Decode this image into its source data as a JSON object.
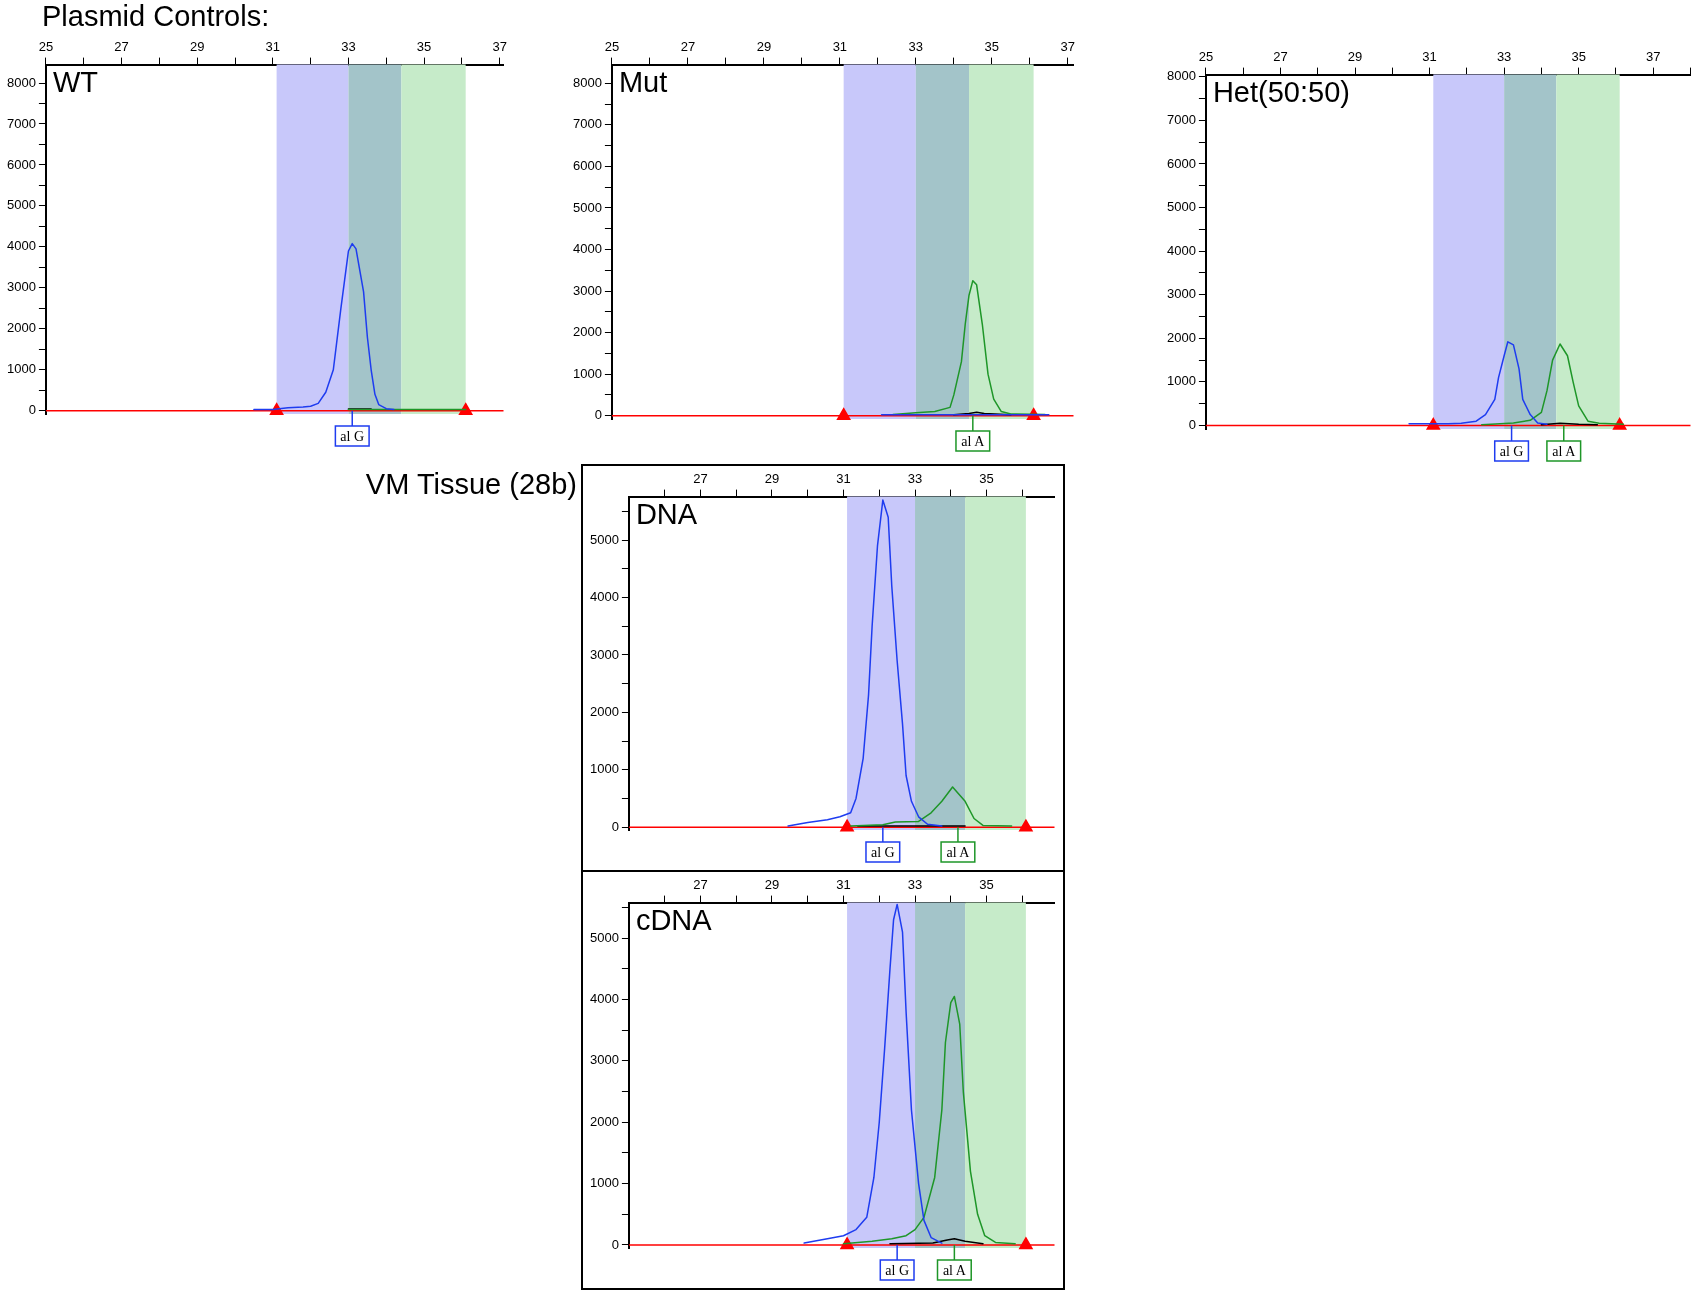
{
  "chart_data": [
    {
      "type": "line",
      "title": "WT",
      "annotations": [
        "Plasmid Controls:",
        {
          "text": "al G",
          "x": 33.1,
          "y": 0
        }
      ],
      "xlim": [
        25,
        37.1
      ],
      "ylim": [
        -80,
        8450
      ],
      "xticks": [
        25,
        {
          "value": 26,
          "label": null
        },
        27,
        {
          "value": 28,
          "label": null
        },
        29,
        {
          "value": 30,
          "label": null
        },
        31,
        {
          "value": 32,
          "label": null
        },
        33,
        {
          "value": 34,
          "label": null
        },
        35,
        {
          "value": 36,
          "label": null
        },
        37
      ],
      "yticks": [
        0,
        {
          "value": 500,
          "label": null
        },
        1000,
        {
          "value": 1500,
          "label": null
        },
        2000,
        {
          "value": 2500,
          "label": null
        },
        3000,
        {
          "value": 3500,
          "label": null
        },
        4000,
        {
          "value": 4500,
          "label": null
        },
        5000,
        {
          "value": 5500,
          "label": null
        },
        6000,
        {
          "value": 6500,
          "label": null
        },
        7000,
        {
          "value": 7500,
          "label": null
        },
        8000
      ],
      "grid": false,
      "legend": false,
      "marker": "none",
      "line_style": "solid",
      "bands": [
        {
          "axis": "x",
          "from": 31.1,
          "to": 33,
          "color": "#c8c8fa"
        },
        {
          "axis": "x",
          "from": 33,
          "to": 34.4,
          "color": "#a3c4c9"
        },
        {
          "axis": "x",
          "from": 34.4,
          "to": 36.1,
          "color": "#c6ebc9"
        }
      ],
      "ref_lines": [
        {
          "axis": "y",
          "value": 0,
          "color": "#ff0000"
        }
      ],
      "series": [
        {
          "color": "#1e3cf0",
          "x": [
            30.5,
            31.0,
            31.4,
            31.8,
            32.0,
            32.2,
            32.4,
            32.6,
            32.8,
            32.9,
            33.0,
            33.1,
            33.2,
            33.4,
            33.5,
            33.6,
            33.7,
            33.8,
            34.0,
            34.2
          ],
          "values": [
            30,
            30,
            70,
            90,
            110,
            180,
            450,
            1000,
            2500,
            3200,
            3900,
            4080,
            3950,
            2900,
            1800,
            1000,
            400,
            150,
            50,
            30
          ]
        },
        {
          "color": "#1e9628",
          "x": [
            33.0,
            34.0,
            35.0,
            36.1
          ],
          "values": [
            30,
            30,
            30,
            30
          ]
        },
        {
          "color": "#000000",
          "x": [
            33.0,
            33.3,
            33.6
          ],
          "values": [
            40,
            40,
            40
          ]
        },
        {
          "type": "scatter",
          "marker": "triangle",
          "color": "#ff0000",
          "x": [
            31.1,
            36.1
          ],
          "values": [
            0,
            0
          ]
        }
      ]
    },
    {
      "type": "line",
      "title": "Mut",
      "annotations": [
        {
          "text": "al A",
          "x": 34.5,
          "y": 0
        }
      ],
      "xlim": [
        25,
        37.15
      ],
      "ylim": [
        -80,
        8450
      ],
      "xticks": [
        25,
        {
          "value": 26,
          "label": null
        },
        27,
        {
          "value": 28,
          "label": null
        },
        29,
        {
          "value": 30,
          "label": null
        },
        31,
        {
          "value": 32,
          "label": null
        },
        33,
        {
          "value": 34,
          "label": null
        },
        35,
        {
          "value": 36,
          "label": null
        },
        37
      ],
      "yticks": [
        0,
        {
          "value": 500,
          "label": null
        },
        1000,
        {
          "value": 1500,
          "label": null
        },
        2000,
        {
          "value": 2500,
          "label": null
        },
        3000,
        {
          "value": 3500,
          "label": null
        },
        4000,
        {
          "value": 4500,
          "label": null
        },
        5000,
        {
          "value": 5500,
          "label": null
        },
        6000,
        {
          "value": 6500,
          "label": null
        },
        7000,
        {
          "value": 7500,
          "label": null
        },
        8000
      ],
      "grid": false,
      "legend": false,
      "marker": "none",
      "line_style": "solid",
      "bands": [
        {
          "axis": "x",
          "from": 31.1,
          "to": 33,
          "color": "#c8c8fa"
        },
        {
          "axis": "x",
          "from": 33,
          "to": 34.4,
          "color": "#a3c4c9"
        },
        {
          "axis": "x",
          "from": 34.4,
          "to": 36.1,
          "color": "#c6ebc9"
        }
      ],
      "ref_lines": [
        {
          "axis": "y",
          "value": 0,
          "color": "#ff0000"
        }
      ],
      "series": [
        {
          "color": "#1e3cf0",
          "x": [
            32.1,
            33.0,
            34.0,
            35.0,
            36.5
          ],
          "values": [
            20,
            20,
            20,
            20,
            20
          ]
        },
        {
          "color": "#1e9628",
          "x": [
            32.4,
            33.0,
            33.5,
            33.9,
            34.0,
            34.2,
            34.3,
            34.4,
            34.5,
            34.6,
            34.75,
            34.9,
            35.05,
            35.25,
            35.5,
            36.4
          ],
          "values": [
            30,
            70,
            100,
            200,
            500,
            1300,
            2200,
            2900,
            3250,
            3150,
            2200,
            1000,
            400,
            100,
            40,
            30
          ]
        },
        {
          "color": "#000000",
          "x": [
            34.0,
            34.4,
            34.6,
            34.8,
            35.5
          ],
          "values": [
            20,
            50,
            80,
            50,
            20
          ]
        },
        {
          "type": "scatter",
          "marker": "triangle",
          "color": "#ff0000",
          "x": [
            31.1,
            36.1
          ],
          "values": [
            0,
            0
          ]
        }
      ]
    },
    {
      "type": "line",
      "title": "Het(50:50)",
      "annotations": [
        {
          "text": "al G",
          "x": 33.2,
          "y": 0
        },
        {
          "text": "al A",
          "x": 34.6,
          "y": 0
        }
      ],
      "xlim": [
        25,
        38
      ],
      "ylim": [
        -80,
        8050
      ],
      "xticks": [
        25,
        {
          "value": 26,
          "label": null
        },
        27,
        {
          "value": 28,
          "label": null
        },
        29,
        {
          "value": 30,
          "label": null
        },
        31,
        {
          "value": 32,
          "label": null
        },
        33,
        {
          "value": 34,
          "label": null
        },
        35,
        {
          "value": 36,
          "label": null
        },
        37,
        {
          "value": 38,
          "label": null
        }
      ],
      "yticks": [
        0,
        {
          "value": 500,
          "label": null
        },
        1000,
        {
          "value": 1500,
          "label": null
        },
        2000,
        {
          "value": 2500,
          "label": null
        },
        3000,
        {
          "value": 3500,
          "label": null
        },
        4000,
        {
          "value": 4500,
          "label": null
        },
        5000,
        {
          "value": 5500,
          "label": null
        },
        6000,
        {
          "value": 6500,
          "label": null
        },
        7000,
        {
          "value": 7500,
          "label": null
        },
        8000
      ],
      "grid": false,
      "legend": false,
      "marker": "none",
      "line_style": "solid",
      "bands": [
        {
          "axis": "x",
          "from": 31.1,
          "to": 33,
          "color": "#c8c8fa"
        },
        {
          "axis": "x",
          "from": 33,
          "to": 34.4,
          "color": "#a3c4c9"
        },
        {
          "axis": "x",
          "from": 34.4,
          "to": 36.1,
          "color": "#c6ebc9"
        }
      ],
      "ref_lines": [
        {
          "axis": "y",
          "value": 0,
          "color": "#ff0000"
        }
      ],
      "series": [
        {
          "color": "#1e3cf0",
          "x": [
            30.45,
            31.5,
            31.85,
            32.25,
            32.5,
            32.75,
            32.85,
            33.0,
            33.1,
            33.25,
            33.4,
            33.5,
            33.7,
            33.9,
            34.15
          ],
          "values": [
            40,
            40,
            50,
            100,
            250,
            600,
            1100,
            1600,
            1920,
            1850,
            1300,
            600,
            250,
            60,
            30
          ]
        },
        {
          "color": "#1e9628",
          "x": [
            32.4,
            33.25,
            33.7,
            34.0,
            34.15,
            34.3,
            34.5,
            34.7,
            34.85,
            35.0,
            35.25,
            35.55,
            36.2
          ],
          "values": [
            20,
            60,
            120,
            300,
            800,
            1500,
            1870,
            1600,
            1000,
            450,
            100,
            50,
            30
          ]
        },
        {
          "color": "#000000",
          "x": [
            34.0,
            34.5,
            35.0,
            35.5
          ],
          "values": [
            20,
            50,
            30,
            20
          ]
        },
        {
          "type": "scatter",
          "marker": "triangle",
          "color": "#ff0000",
          "x": [
            31.1,
            36.1
          ],
          "values": [
            0,
            0
          ]
        }
      ]
    },
    {
      "type": "line",
      "title": "DNA",
      "annotations": [
        "VM Tissue (28b)",
        {
          "text": "al G",
          "x": 32.1,
          "y": 0
        },
        {
          "text": "al A",
          "x": 34.2,
          "y": 0
        }
      ],
      "xlim": [
        25,
        36.9
      ],
      "ylim": [
        -50,
        5760
      ],
      "xticks": [
        {
          "value": 26,
          "label": null
        },
        27,
        {
          "value": 28,
          "label": null
        },
        29,
        {
          "value": 30,
          "label": null
        },
        31,
        {
          "value": 32,
          "label": null
        },
        33,
        {
          "value": 34,
          "label": null
        },
        35,
        {
          "value": 36,
          "label": null
        }
      ],
      "yticks": [
        0,
        {
          "value": 500,
          "label": null
        },
        1000,
        {
          "value": 1500,
          "label": null
        },
        2000,
        {
          "value": 2500,
          "label": null
        },
        3000,
        {
          "value": 3500,
          "label": null
        },
        4000,
        {
          "value": 4500,
          "label": null
        },
        5000,
        {
          "value": 5500,
          "label": null
        }
      ],
      "grid": false,
      "legend": false,
      "marker": "none",
      "line_style": "solid",
      "bands": [
        {
          "axis": "x",
          "from": 31.1,
          "to": 33,
          "color": "#c8c8fa"
        },
        {
          "axis": "x",
          "from": 33,
          "to": 34.4,
          "color": "#a3c4c9"
        },
        {
          "axis": "x",
          "from": 34.4,
          "to": 36.1,
          "color": "#c6ebc9"
        }
      ],
      "ref_lines": [
        {
          "axis": "y",
          "value": 0,
          "color": "#ff0000"
        }
      ],
      "series": [
        {
          "color": "#1e3cf0",
          "x": [
            29.45,
            30.0,
            30.55,
            30.9,
            31.2,
            31.35,
            31.55,
            31.7,
            31.8,
            31.95,
            32.1,
            32.25,
            32.35,
            32.5,
            32.65,
            32.75,
            32.9,
            33.1,
            33.35,
            33.75
          ],
          "values": [
            20,
            80,
            130,
            180,
            250,
            500,
            1200,
            2300,
            3500,
            4900,
            5700,
            5400,
            4200,
            2900,
            1800,
            900,
            450,
            180,
            50,
            20
          ]
        },
        {
          "color": "#1e9628",
          "x": [
            31.2,
            32.1,
            32.45,
            33.1,
            33.45,
            33.75,
            34.05,
            34.4,
            34.65,
            34.9,
            35.7
          ],
          "values": [
            20,
            40,
            90,
            100,
            250,
            450,
            700,
            450,
            150,
            30,
            20
          ]
        },
        {
          "color": "#000000",
          "x": [
            31.4,
            32.5,
            33.5,
            34.4
          ],
          "values": [
            20,
            20,
            20,
            20
          ]
        },
        {
          "type": "scatter",
          "marker": "triangle",
          "color": "#ff0000",
          "x": [
            31.1,
            36.1
          ],
          "values": [
            0,
            0
          ]
        }
      ]
    },
    {
      "type": "line",
      "title": "cDNA",
      "annotations": [
        {
          "text": "al G",
          "x": 32.5,
          "y": 0
        },
        {
          "text": "al A",
          "x": 34.1,
          "y": 0
        }
      ],
      "xlim": [
        25,
        36.9
      ],
      "ylim": [
        -50,
        5580
      ],
      "xticks": [
        {
          "value": 26,
          "label": null
        },
        27,
        {
          "value": 28,
          "label": null
        },
        29,
        {
          "value": 30,
          "label": null
        },
        31,
        {
          "value": 32,
          "label": null
        },
        33,
        {
          "value": 34,
          "label": null
        },
        35,
        {
          "value": 36,
          "label": null
        }
      ],
      "yticks": [
        0,
        {
          "value": 500,
          "label": null
        },
        1000,
        {
          "value": 1500,
          "label": null
        },
        2000,
        {
          "value": 2500,
          "label": null
        },
        3000,
        {
          "value": 3500,
          "label": null
        },
        4000,
        {
          "value": 4500,
          "label": null
        },
        5000,
        {
          "value": 5500,
          "label": null
        }
      ],
      "grid": false,
      "legend": false,
      "marker": "none",
      "line_style": "solid",
      "bands": [
        {
          "axis": "x",
          "from": 31.1,
          "to": 33,
          "color": "#c8c8fa"
        },
        {
          "axis": "x",
          "from": 33,
          "to": 34.4,
          "color": "#a3c4c9"
        },
        {
          "axis": "x",
          "from": 34.4,
          "to": 36.1,
          "color": "#c6ebc9"
        }
      ],
      "ref_lines": [
        {
          "axis": "y",
          "value": 0,
          "color": "#ff0000"
        }
      ],
      "series": [
        {
          "color": "#1e3cf0",
          "x": [
            29.9,
            30.55,
            31.0,
            31.35,
            31.65,
            31.85,
            32.0,
            32.15,
            32.3,
            32.4,
            32.5,
            32.65,
            32.75,
            32.9,
            33.1,
            33.25,
            33.45,
            33.75
          ],
          "values": [
            30,
            100,
            150,
            250,
            450,
            1100,
            2000,
            3200,
            4500,
            5300,
            5550,
            5100,
            3800,
            2200,
            1000,
            400,
            120,
            30
          ]
        },
        {
          "color": "#1e9628",
          "x": [
            31.0,
            31.8,
            32.35,
            32.75,
            33.0,
            33.25,
            33.55,
            33.75,
            33.85,
            34.0,
            34.1,
            34.25,
            34.35,
            34.55,
            34.75,
            34.95,
            35.25,
            35.8
          ],
          "values": [
            20,
            60,
            100,
            150,
            250,
            450,
            1100,
            2200,
            3300,
            3950,
            4050,
            3600,
            2500,
            1200,
            500,
            150,
            40,
            20
          ]
        },
        {
          "color": "#000000",
          "x": [
            32.3,
            33.5,
            33.9,
            34.1,
            34.4,
            34.9
          ],
          "values": [
            20,
            30,
            80,
            100,
            60,
            20
          ]
        },
        {
          "type": "scatter",
          "marker": "triangle",
          "color": "#ff0000",
          "x": [
            31.1,
            36.1
          ],
          "values": [
            0,
            0
          ]
        }
      ]
    }
  ]
}
